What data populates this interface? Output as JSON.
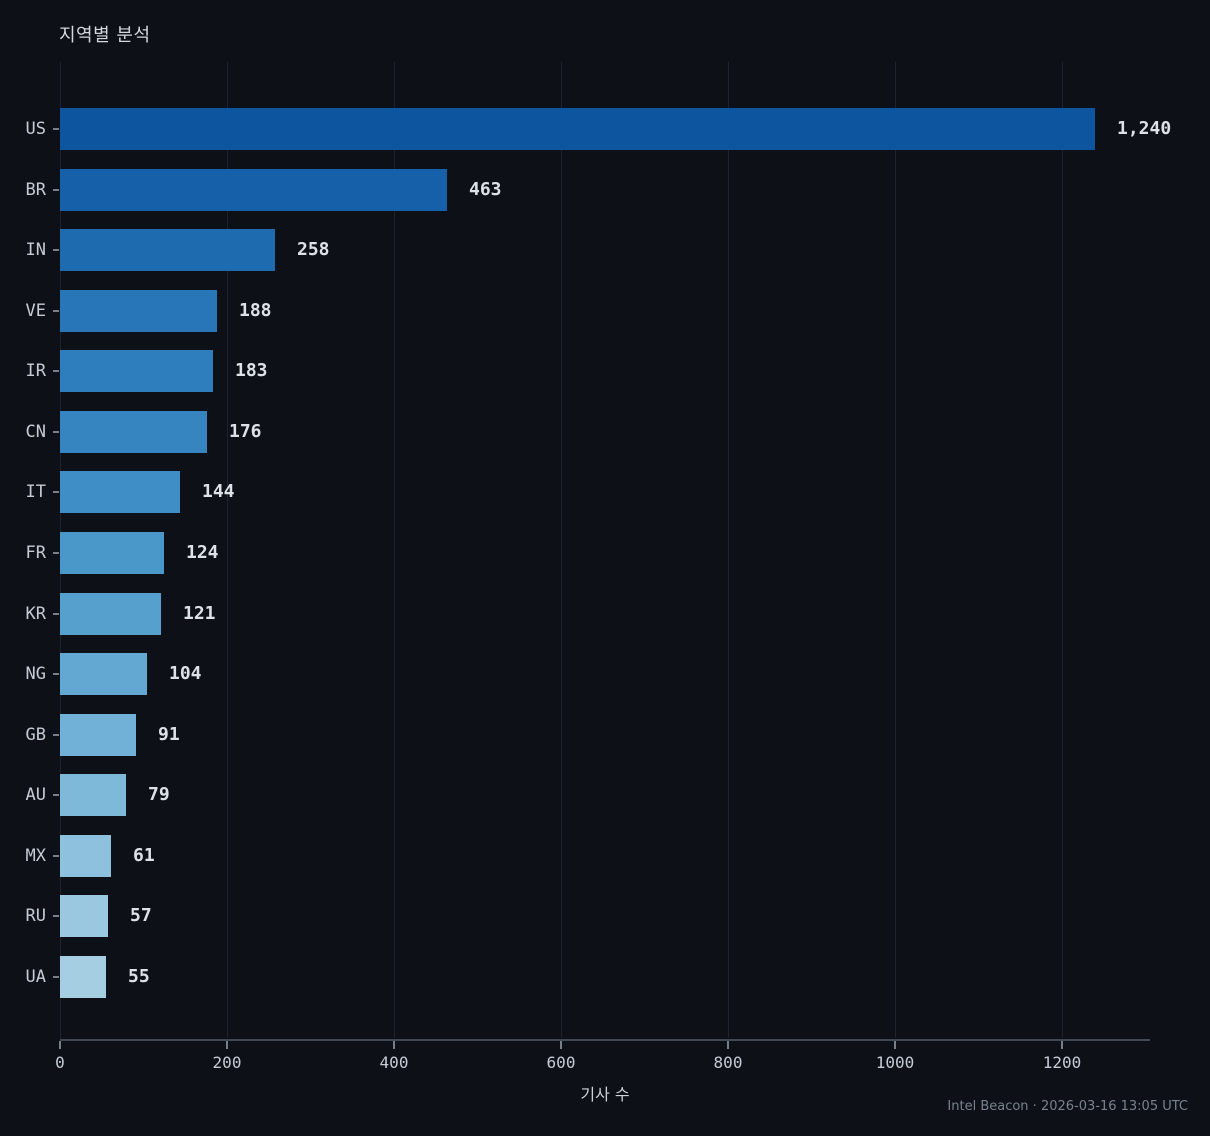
{
  "title": "지역별 분석",
  "chart_data": {
    "type": "bar",
    "orientation": "horizontal",
    "title": "지역별 분석",
    "xlabel": "기사 수",
    "ylabel": "",
    "categories": [
      "US",
      "BR",
      "IN",
      "VE",
      "IR",
      "CN",
      "IT",
      "FR",
      "KR",
      "NG",
      "GB",
      "AU",
      "MX",
      "RU",
      "UA"
    ],
    "values": [
      1240,
      463,
      258,
      188,
      183,
      176,
      144,
      124,
      121,
      104,
      91,
      79,
      61,
      57,
      55
    ],
    "value_labels": [
      "1,240",
      "463",
      "258",
      "188",
      "183",
      "176",
      "144",
      "124",
      "121",
      "104",
      "91",
      "79",
      "61",
      "57",
      "55"
    ],
    "bar_colors": [
      "#0e559f",
      "#1660a9",
      "#1f6bb0",
      "#2876b7",
      "#2e7dbc",
      "#3685c0",
      "#3f8ec5",
      "#4a97ca",
      "#56a0ce",
      "#63a8d2",
      "#71b1d7",
      "#7fb9da",
      "#8dc1de",
      "#9ac8e1",
      "#a6cee3"
    ],
    "xlim": [
      0,
      1305
    ],
    "xticks": [
      0,
      200,
      400,
      600,
      800,
      1000,
      1200
    ],
    "xtick_labels": [
      "0",
      "200",
      "400",
      "600",
      "800",
      "1000",
      "1200"
    ],
    "grid": true,
    "legend": false
  },
  "footer": {
    "text": "Intel Beacon · 2026-03-16 13:05 UTC"
  },
  "colors": {
    "background": "#0d1117",
    "gridline": "#1d232c",
    "axis_line": "#414955",
    "tick": "#767f8a",
    "tick_label": "#c6ccd3",
    "value_label": "#dde2e8",
    "title_text": "#d3d8dd",
    "footer_text": "#79828c"
  }
}
